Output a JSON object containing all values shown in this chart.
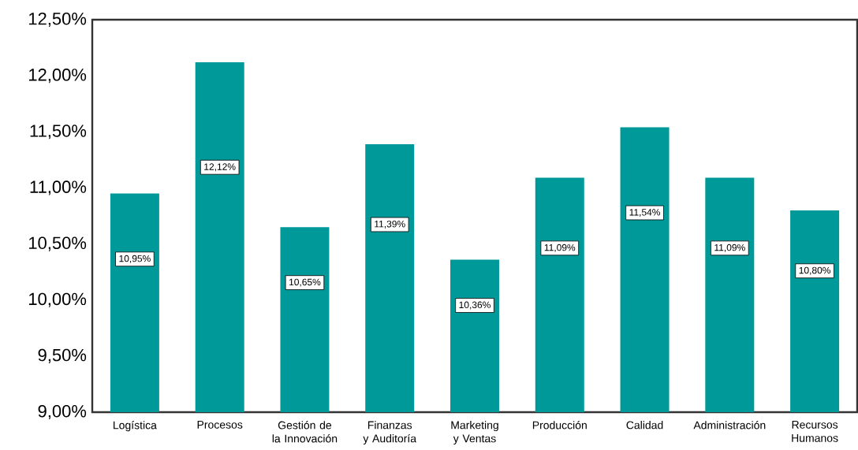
{
  "chart_data": {
    "type": "bar",
    "categories": [
      "Logística",
      "Procesos",
      "Gestión de la Innovación",
      "Finanzas y Auditoría",
      "Marketing y Ventas",
      "Producción",
      "Calidad",
      "Administración",
      "Recursos Humanos"
    ],
    "values": [
      10.95,
      12.12,
      10.65,
      11.39,
      10.36,
      11.09,
      11.54,
      11.09,
      10.8
    ],
    "value_labels": [
      "10,95%",
      "12,12%",
      "10,65%",
      "11,39%",
      "10,36%",
      "11,09%",
      "11,54%",
      "11,09%",
      "10,80%"
    ],
    "color": "#009999",
    "ylim": [
      9,
      12.5
    ],
    "yticks": [
      {
        "value": 9,
        "label": "9,00%"
      },
      {
        "value": 9.5,
        "label": "9,50%"
      },
      {
        "value": 10,
        "label": "10,00%"
      },
      {
        "value": 10.5,
        "label": "10,50%"
      },
      {
        "value": 11,
        "label": "11,00%"
      },
      {
        "value": 11.5,
        "label": "11,50%"
      },
      {
        "value": 12,
        "label": "12,00%"
      },
      {
        "value": 12.5,
        "label": "12,50%"
      }
    ]
  }
}
